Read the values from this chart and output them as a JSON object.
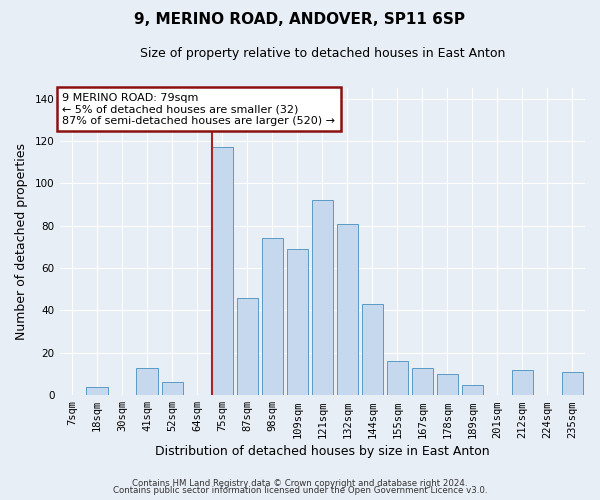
{
  "title": "9, MERINO ROAD, ANDOVER, SP11 6SP",
  "subtitle": "Size of property relative to detached houses in East Anton",
  "xlabel": "Distribution of detached houses by size in East Anton",
  "ylabel": "Number of detached properties",
  "bar_labels": [
    "7sqm",
    "18sqm",
    "30sqm",
    "41sqm",
    "52sqm",
    "64sqm",
    "75sqm",
    "87sqm",
    "98sqm",
    "109sqm",
    "121sqm",
    "132sqm",
    "144sqm",
    "155sqm",
    "167sqm",
    "178sqm",
    "189sqm",
    "201sqm",
    "212sqm",
    "224sqm",
    "235sqm"
  ],
  "bar_values": [
    0,
    4,
    0,
    13,
    6,
    0,
    117,
    46,
    74,
    69,
    92,
    81,
    43,
    16,
    13,
    10,
    5,
    0,
    12,
    0,
    11
  ],
  "bar_color": "#c5d8ed",
  "bar_edge_color": "#5a9ac5",
  "vline_x_index": 6,
  "vline_color": "#aa2222",
  "ylim": [
    0,
    145
  ],
  "yticks": [
    0,
    20,
    40,
    60,
    80,
    100,
    120,
    140
  ],
  "legend_title": "9 MERINO ROAD: 79sqm",
  "legend_line1": "← 5% of detached houses are smaller (32)",
  "legend_line2": "87% of semi-detached houses are larger (520) →",
  "legend_box_color": "#8b1010",
  "footer1": "Contains HM Land Registry data © Crown copyright and database right 2024.",
  "footer2": "Contains public sector information licensed under the Open Government Licence v3.0.",
  "bg_color": "#e8eef5",
  "plot_bg_color": "#e8eef5",
  "grid_color": "white",
  "title_fontsize": 11,
  "subtitle_fontsize": 9,
  "axis_label_fontsize": 9,
  "tick_fontsize": 7.5
}
